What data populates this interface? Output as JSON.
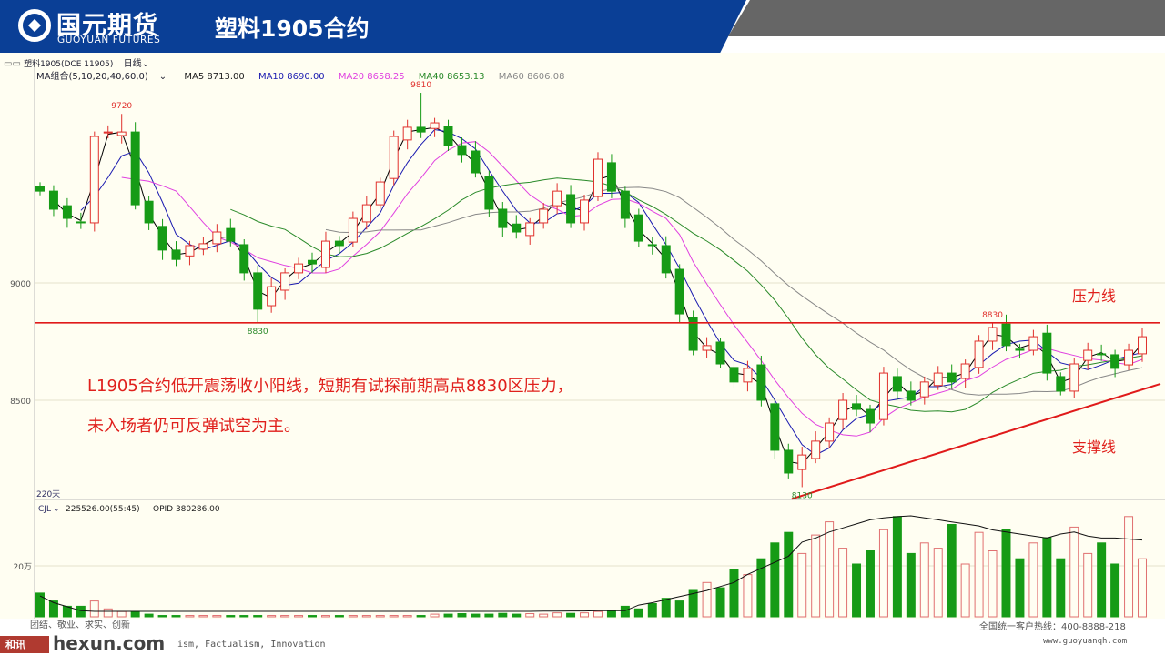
{
  "header": {
    "brand_cn": "国元期货",
    "brand_en": "GUOYUAN FUTURES",
    "title": "塑料1905合约"
  },
  "toolbar": {
    "symbol": "塑料1905(DCE 11905)",
    "period": "日线",
    "ma_group": "MA组合(5,10,20,40,60,0)",
    "ma5": "MA5 8713.00",
    "ma10": "MA10 8690.00",
    "ma20": "MA20 8658.25",
    "ma40": "MA40 8653.13",
    "ma60": "MA60 8606.08",
    "days": "220天",
    "vol_indicator": "CJL",
    "vol_value": "225526.00(55:45)",
    "opid": "OPID 380286.00"
  },
  "annotations": {
    "comment_line1": "L1905合约低开震荡收小阳线，短期有试探前期高点8830区压力，",
    "comment_line2": "未入场者仍可反弹试空为主。",
    "resistance_label": "压力线",
    "support_label": "支撑线"
  },
  "footer": {
    "motto_cn": "团结、敬业、求实、创新",
    "motto_en": "ism, Factualism, Innovation",
    "watermark_badge": "和讯",
    "watermark": "hexun.com",
    "hotline": "全国统一客户热线：400-8888-218",
    "website": "www.guoyuanqh.com"
  },
  "chart_data": [
    {
      "type": "candlestick",
      "title": "塑料1905(DCE 11905) 日线",
      "y_ticks": [
        "9000",
        "8500"
      ],
      "ylim": [
        8100,
        9900
      ],
      "grid": true,
      "colors": {
        "up": "#e0302c",
        "down": "#169b16",
        "ma5": "#000000",
        "ma10": "#1a1ab0",
        "ma20": "#e040e0",
        "ma40": "#2a8a2a",
        "ma60": "#888888",
        "trendline": "#e01a1a"
      },
      "close": [
        9391,
        9314,
        9275,
        9256,
        9624,
        9643,
        9643,
        9333,
        9256,
        9140,
        9100,
        9159,
        9167,
        9217,
        9178,
        9043,
        8888,
        8984,
        9043,
        9081,
        9081,
        9178,
        9159,
        9275,
        9333,
        9430,
        9624,
        9663,
        9643,
        9682,
        9585,
        9547,
        9469,
        9314,
        9236,
        9217,
        9256,
        9314,
        9391,
        9256,
        9353,
        9527,
        9391,
        9275,
        9178,
        9159,
        9043,
        8868,
        8713,
        8733,
        8655,
        8578,
        8636,
        8500,
        8287,
        8190,
        8267,
        8326,
        8403,
        8500,
        8461,
        8403,
        8616,
        8539,
        8500,
        8578,
        8616,
        8578,
        8655,
        8752,
        8810,
        8733,
        8713,
        8771,
        8616,
        8539,
        8655,
        8713,
        8694,
        8636,
        8713,
        8771
      ],
      "marked_extremes": [
        {
          "label": "9720",
          "index": 6,
          "kind": "high",
          "value": 9720
        },
        {
          "label": "9810",
          "index": 28,
          "kind": "high",
          "value": 9810
        },
        {
          "label": "8830",
          "index": 16,
          "kind": "low",
          "value": 8830
        },
        {
          "label": "8130",
          "index": 56,
          "kind": "low",
          "value": 8130
        },
        {
          "label": "8830",
          "index": 70,
          "kind": "high",
          "value": 8830
        }
      ],
      "resistance_line": {
        "price": 8830
      },
      "support_line": {
        "start_price": 8080,
        "end_price": 8570
      }
    },
    {
      "type": "bar+line",
      "y_ticks": [
        "20万"
      ],
      "volume_wan": [
        9,
        6,
        4,
        4,
        6,
        3,
        2,
        2,
        1,
        0.5,
        0.5,
        0.5,
        0.5,
        0.5,
        0.5,
        0.5,
        0.5,
        0.5,
        0.5,
        0.5,
        0.5,
        0.5,
        0.5,
        0.5,
        0.5,
        0.5,
        0.5,
        0.5,
        0.5,
        1,
        1,
        1.2,
        1,
        1,
        1.3,
        1,
        1.2,
        1,
        1.5,
        1.3,
        1.5,
        2,
        2.5,
        4,
        3,
        5,
        7,
        6,
        10,
        13,
        11,
        18,
        16,
        22,
        28,
        32,
        24,
        31,
        36,
        26,
        20,
        25,
        33,
        38,
        24,
        28,
        26,
        35,
        20,
        32,
        25,
        33,
        22,
        28,
        30,
        22,
        34,
        24,
        28,
        20,
        38,
        22
      ],
      "opid_wan": [
        10.3,
        7,
        5,
        3,
        2.7,
        2.7,
        2.7,
        2.7,
        2.7,
        2.7,
        2.7,
        2.7,
        2.7,
        2.7,
        2.7,
        2.7,
        2.7,
        2.7,
        2.7,
        2.7,
        2.7,
        2.7,
        2.7,
        2.7,
        2.7,
        2.7,
        2.7,
        2.7,
        2.7,
        2.7,
        2.7,
        2.7,
        2.7,
        2.7,
        2.7,
        2.7,
        2.7,
        2.8,
        2.8,
        2.9,
        2.9,
        3,
        3,
        3,
        5.8,
        7,
        8.5,
        10,
        11.5,
        13,
        15,
        17,
        21,
        24,
        27,
        30,
        37,
        39,
        42,
        44,
        46,
        48,
        49,
        49.6,
        50,
        49,
        48,
        47,
        46,
        45,
        43,
        42,
        41,
        40,
        39,
        41,
        42,
        40,
        39,
        39,
        38.5,
        38.0
      ]
    }
  ]
}
